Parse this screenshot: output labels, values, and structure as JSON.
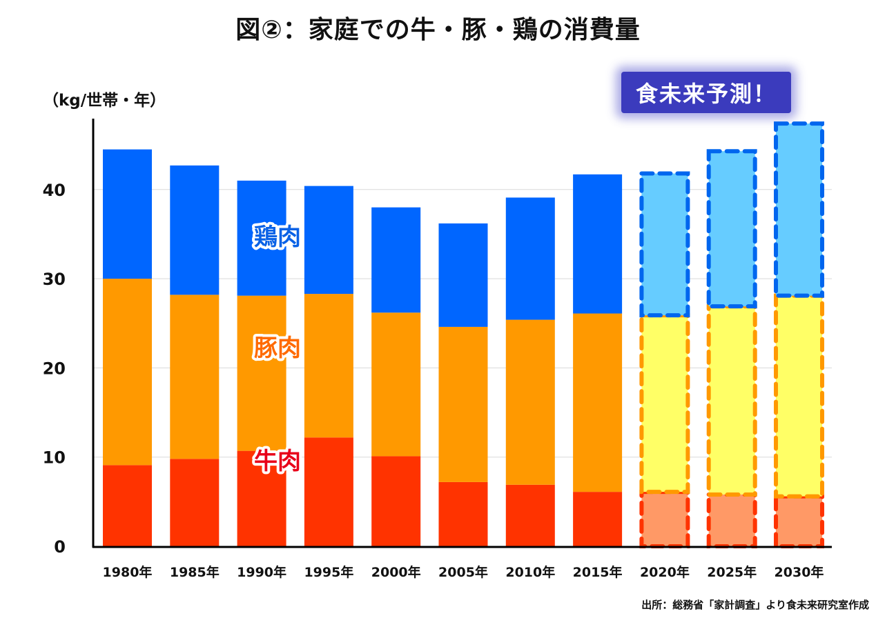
{
  "title": "図②：家庭での牛・豚・鶏の消費量",
  "unit_label": "（kg/世帯・年）",
  "forecast_badge": "食未来予測！",
  "source": "出所：総務省「家計調査」より食未来研究室作成",
  "chart_data": {
    "type": "bar",
    "stacked": true,
    "title": "図②：家庭での牛・豚・鶏の消費量",
    "xlabel": "",
    "ylabel": "（kg/世帯・年）",
    "ylim": [
      0,
      48
    ],
    "yticks": [
      0,
      10,
      20,
      30,
      40
    ],
    "grid": true,
    "categories": [
      "1980年",
      "1985年",
      "1990年",
      "1995年",
      "2000年",
      "2005年",
      "2010年",
      "2015年",
      "2020年",
      "2025年",
      "2030年"
    ],
    "forecast_from_index": 8,
    "series": [
      {
        "name": "牛肉",
        "label_color": "#e8001a",
        "color": "#ff3300",
        "forecast_color": "#ff9966",
        "forecast_border": "#ff3300",
        "values": [
          9.1,
          9.8,
          10.7,
          12.2,
          10.1,
          7.2,
          6.9,
          6.1,
          6.1,
          5.8,
          5.6
        ]
      },
      {
        "name": "豚肉",
        "label_color": "#ff6a00",
        "color": "#ff9900",
        "forecast_color": "#ffff66",
        "forecast_border": "#ff9900",
        "values": [
          20.9,
          18.4,
          17.4,
          16.1,
          16.1,
          17.4,
          18.5,
          20.0,
          19.8,
          21.1,
          22.5
        ]
      },
      {
        "name": "鶏肉",
        "label_color": "#0a62e6",
        "color": "#0066ff",
        "forecast_color": "#66ccff",
        "forecast_border": "#0066ee",
        "values": [
          14.5,
          14.5,
          12.9,
          12.1,
          11.8,
          11.6,
          13.7,
          15.6,
          15.9,
          17.4,
          19.3
        ]
      }
    ],
    "series_labels": [
      {
        "series": "鶏肉",
        "near_category": "1990年"
      },
      {
        "series": "豚肉",
        "near_category": "1990年"
      },
      {
        "series": "牛肉",
        "near_category": "1990年"
      }
    ],
    "annotation": "食未来予測！"
  }
}
